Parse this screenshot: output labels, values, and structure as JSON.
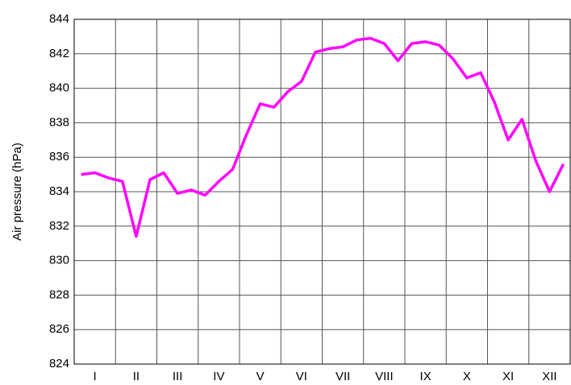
{
  "chart_data": {
    "type": "line",
    "ylabel": "Air pressure (hPa)",
    "categories": [
      null,
      "I",
      null,
      null,
      "II",
      null,
      null,
      "III",
      null,
      null,
      "IV",
      null,
      null,
      "V",
      null,
      null,
      "VI",
      null,
      null,
      "VII",
      null,
      null,
      "VIII",
      null,
      null,
      "IX",
      null,
      null,
      "X",
      null,
      null,
      "XI",
      null,
      null,
      "XII",
      null
    ],
    "series": [
      {
        "name": "Air pressure",
        "color": "#ff00ff",
        "values": [
          835.0,
          835.1,
          834.8,
          834.6,
          831.4,
          834.7,
          835.1,
          833.9,
          834.1,
          833.8,
          834.6,
          835.3,
          837.3,
          839.1,
          838.9,
          839.8,
          840.4,
          842.1,
          842.3,
          842.4,
          842.8,
          842.9,
          842.6,
          841.6,
          842.6,
          842.7,
          842.5,
          841.7,
          840.6,
          840.9,
          839.2,
          837.0,
          838.2,
          835.8,
          834.0,
          835.6
        ]
      }
    ],
    "ylim": [
      824,
      844
    ],
    "yticks": [
      824,
      826,
      828,
      830,
      832,
      834,
      836,
      838,
      840,
      842,
      844
    ],
    "grid": true
  }
}
